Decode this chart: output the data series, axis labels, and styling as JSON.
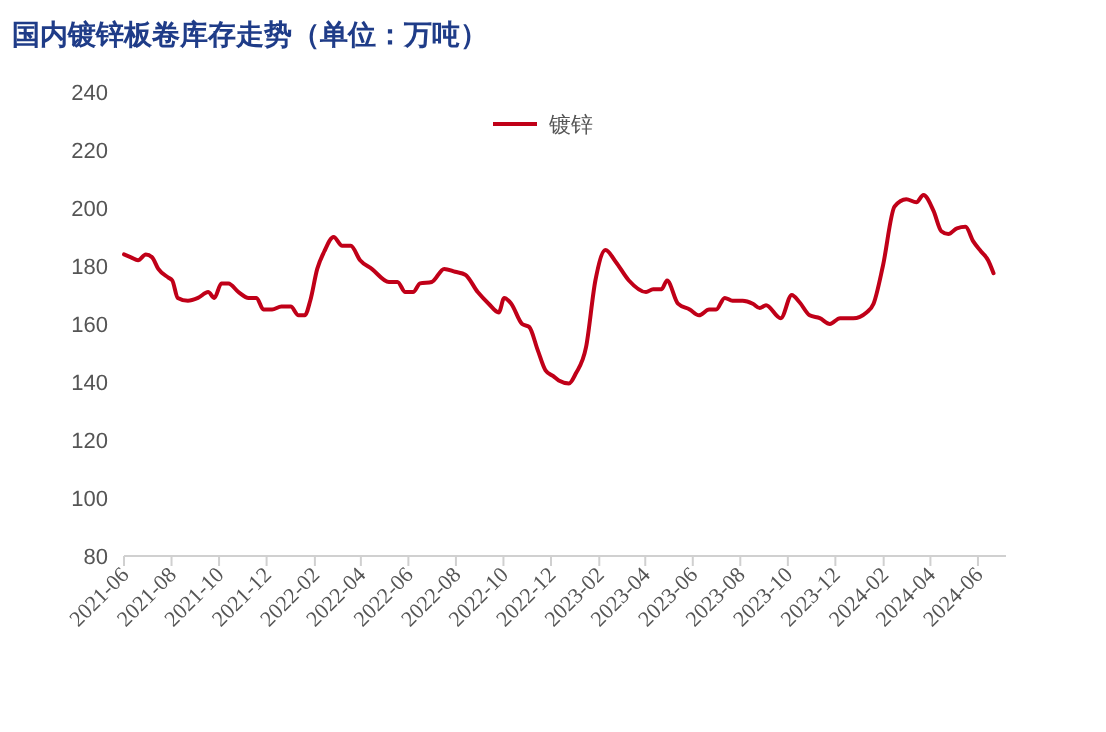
{
  "chart_data": {
    "type": "line",
    "title": "国内镀锌板卷库存走势（单位：万吨）",
    "x": [
      "2021-06-01",
      "2021-06-10",
      "2021-06-19",
      "2021-06-29",
      "2021-07-07",
      "2021-07-15",
      "2021-07-28",
      "2021-08-02",
      "2021-08-09",
      "2021-08-22",
      "2021-09-04",
      "2021-09-17",
      "2021-09-25",
      "2021-10-04",
      "2021-10-13",
      "2021-10-26",
      "2021-11-08",
      "2021-11-18",
      "2021-11-27",
      "2021-12-08",
      "2021-12-20",
      "2022-01-01",
      "2022-01-11",
      "2022-01-19",
      "2022-01-26",
      "2022-02-04",
      "2022-02-13",
      "2022-02-25",
      "2022-03-08",
      "2022-03-19",
      "2022-03-31",
      "2022-04-15",
      "2022-05-07",
      "2022-05-18",
      "2022-05-28",
      "2022-06-07",
      "2022-06-16",
      "2022-07-01",
      "2022-07-17",
      "2022-07-31",
      "2022-08-13",
      "2022-08-29",
      "2022-09-12",
      "2022-09-25",
      "2022-10-02",
      "2022-10-11",
      "2022-10-25",
      "2022-11-03",
      "2022-11-14",
      "2022-11-24",
      "2022-12-04",
      "2022-12-11",
      "2022-12-24",
      "2023-01-02",
      "2023-01-15",
      "2023-01-27",
      "2023-02-09",
      "2023-02-22",
      "2023-03-11",
      "2023-04-02",
      "2023-04-11",
      "2023-04-22",
      "2023-04-29",
      "2023-05-13",
      "2023-05-28",
      "2023-06-09",
      "2023-06-22",
      "2023-07-01",
      "2023-07-12",
      "2023-07-22",
      "2023-08-04",
      "2023-08-17",
      "2023-08-26",
      "2023-09-03",
      "2023-09-22",
      "2023-10-06",
      "2023-10-16",
      "2023-10-29",
      "2023-11-11",
      "2023-11-24",
      "2023-12-07",
      "2023-12-24",
      "2024-01-10",
      "2024-01-19",
      "2024-01-31",
      "2024-02-15",
      "2024-03-01",
      "2024-03-14",
      "2024-03-23",
      "2024-04-05",
      "2024-04-15",
      "2024-04-24",
      "2024-05-05",
      "2024-05-16",
      "2024-05-26",
      "2024-06-05",
      "2024-06-14",
      "2024-06-21"
    ],
    "series": [
      {
        "name": "镀锌",
        "color": "#c00018",
        "values": [
          184,
          183,
          182,
          184,
          183,
          179,
          176,
          175,
          169,
          168,
          169,
          171,
          169,
          174,
          174,
          171,
          169,
          169,
          165,
          165,
          166,
          166,
          163,
          163,
          168,
          179,
          185,
          190,
          187,
          187,
          182,
          179,
          174.5,
          174.5,
          171,
          171,
          174,
          174.5,
          179,
          178,
          177,
          171,
          167,
          164,
          169,
          167,
          160,
          159,
          151,
          144,
          142,
          140.5,
          139.5,
          143,
          152,
          175,
          185.5,
          181.5,
          175,
          171,
          172,
          172,
          175,
          167,
          165,
          163,
          165,
          165,
          169,
          168,
          168,
          167,
          165.5,
          166.5,
          162,
          170,
          167.5,
          163,
          162,
          160,
          162,
          162,
          164,
          167,
          180,
          200.5,
          203,
          202,
          204.5,
          199,
          192,
          191,
          193,
          193.5,
          188.5,
          185,
          182,
          177.5
        ]
      }
    ],
    "xlim": [
      "2021-06-01",
      "2024-07-07"
    ],
    "xticks": [
      "2021-06",
      "2021-08",
      "2021-10",
      "2021-12",
      "2022-02",
      "2022-04",
      "2022-06",
      "2022-08",
      "2022-10",
      "2022-12",
      "2023-02",
      "2023-04",
      "2023-06",
      "2023-08",
      "2023-10",
      "2023-12",
      "2024-02",
      "2024-04",
      "2024-06"
    ],
    "ylim": [
      80,
      240
    ],
    "yticks": [
      80,
      100,
      120,
      140,
      160,
      180,
      200,
      220,
      240
    ],
    "grid": false,
    "legend": "top",
    "marker": "none",
    "line_style": "solid"
  }
}
